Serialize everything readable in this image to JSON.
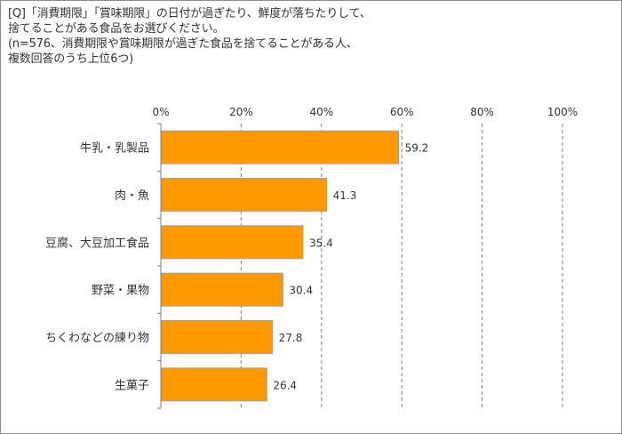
{
  "question": {
    "line1": "[Q]「消費期限」「賞味期限」の日付が過ぎたり、鮮度が落ちたりして、",
    "line2": "捨てることがある食品をお選びください。",
    "line3": "(n=576、消費期限や賞味期限が過ぎた食品を捨てることがある人、",
    "line4": "複数回答のうち上位6つ)"
  },
  "chart_data": {
    "type": "bar",
    "orientation": "horizontal",
    "categories": [
      "牛乳・乳製品",
      "肉・魚",
      "豆腐、大豆加工食品",
      "野菜・果物",
      "ちくわなどの練り物",
      "生菓子"
    ],
    "values": [
      59.2,
      41.3,
      35.4,
      30.4,
      27.8,
      26.4
    ],
    "value_labels": [
      "59.2",
      "41.3",
      "35.4",
      "30.4",
      "27.8",
      "26.4"
    ],
    "xlim": [
      0,
      100
    ],
    "ticks": [
      0,
      20,
      40,
      60,
      80,
      100
    ],
    "tick_labels": [
      "0%",
      "20%",
      "40%",
      "60%",
      "80%",
      "100%"
    ],
    "grid": "dashed vertical",
    "legend": "none"
  },
  "colors": {
    "bar_fill": "#ff9900",
    "bar_edge": "#a0a0a0",
    "grid": "#7f7f7f",
    "text": "#333333"
  }
}
